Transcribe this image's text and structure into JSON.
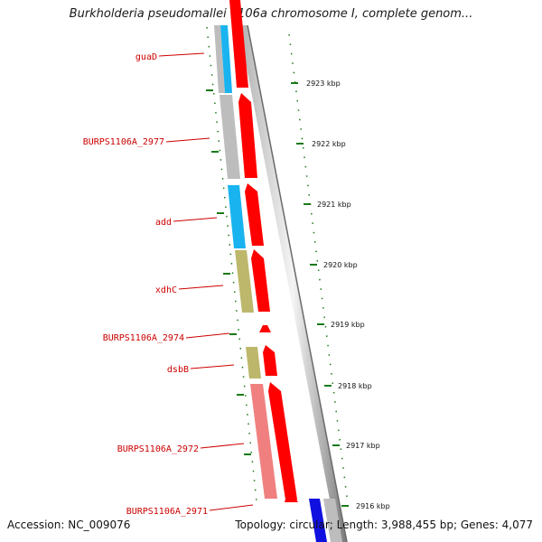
{
  "title": "Burkholderia pseudomallei 1106a chromosome I, complete genom...",
  "footer": {
    "accession": "Accession: NC_009076",
    "topology": "Topology: circular; Length: 3,988,455 bp; Genes: 4,077"
  },
  "gene_labels": [
    "guaD",
    "BURPS1106A_2977",
    "add",
    "xdhC",
    "BURPS1106A_2974",
    "dsbB",
    "BURPS1106A_2972",
    "BURPS1106A_2971"
  ],
  "scale_labels": [
    "2923 kbp",
    "2922 kbp",
    "2921 kbp",
    "2920 kbp",
    "2919 kbp",
    "2918 kbp",
    "2917 kbp",
    "2916 kbp"
  ],
  "colors": {
    "label_red": "#cc0000",
    "arrow_red": "#ff0000",
    "gene_cyan": "#19b4f0",
    "gene_gray": "#bdbdbd",
    "gene_khaki": "#bdb76b",
    "gene_salmon": "#f08080",
    "gene_blue": "#1010e0",
    "tick_green": "#1a7a1a"
  }
}
